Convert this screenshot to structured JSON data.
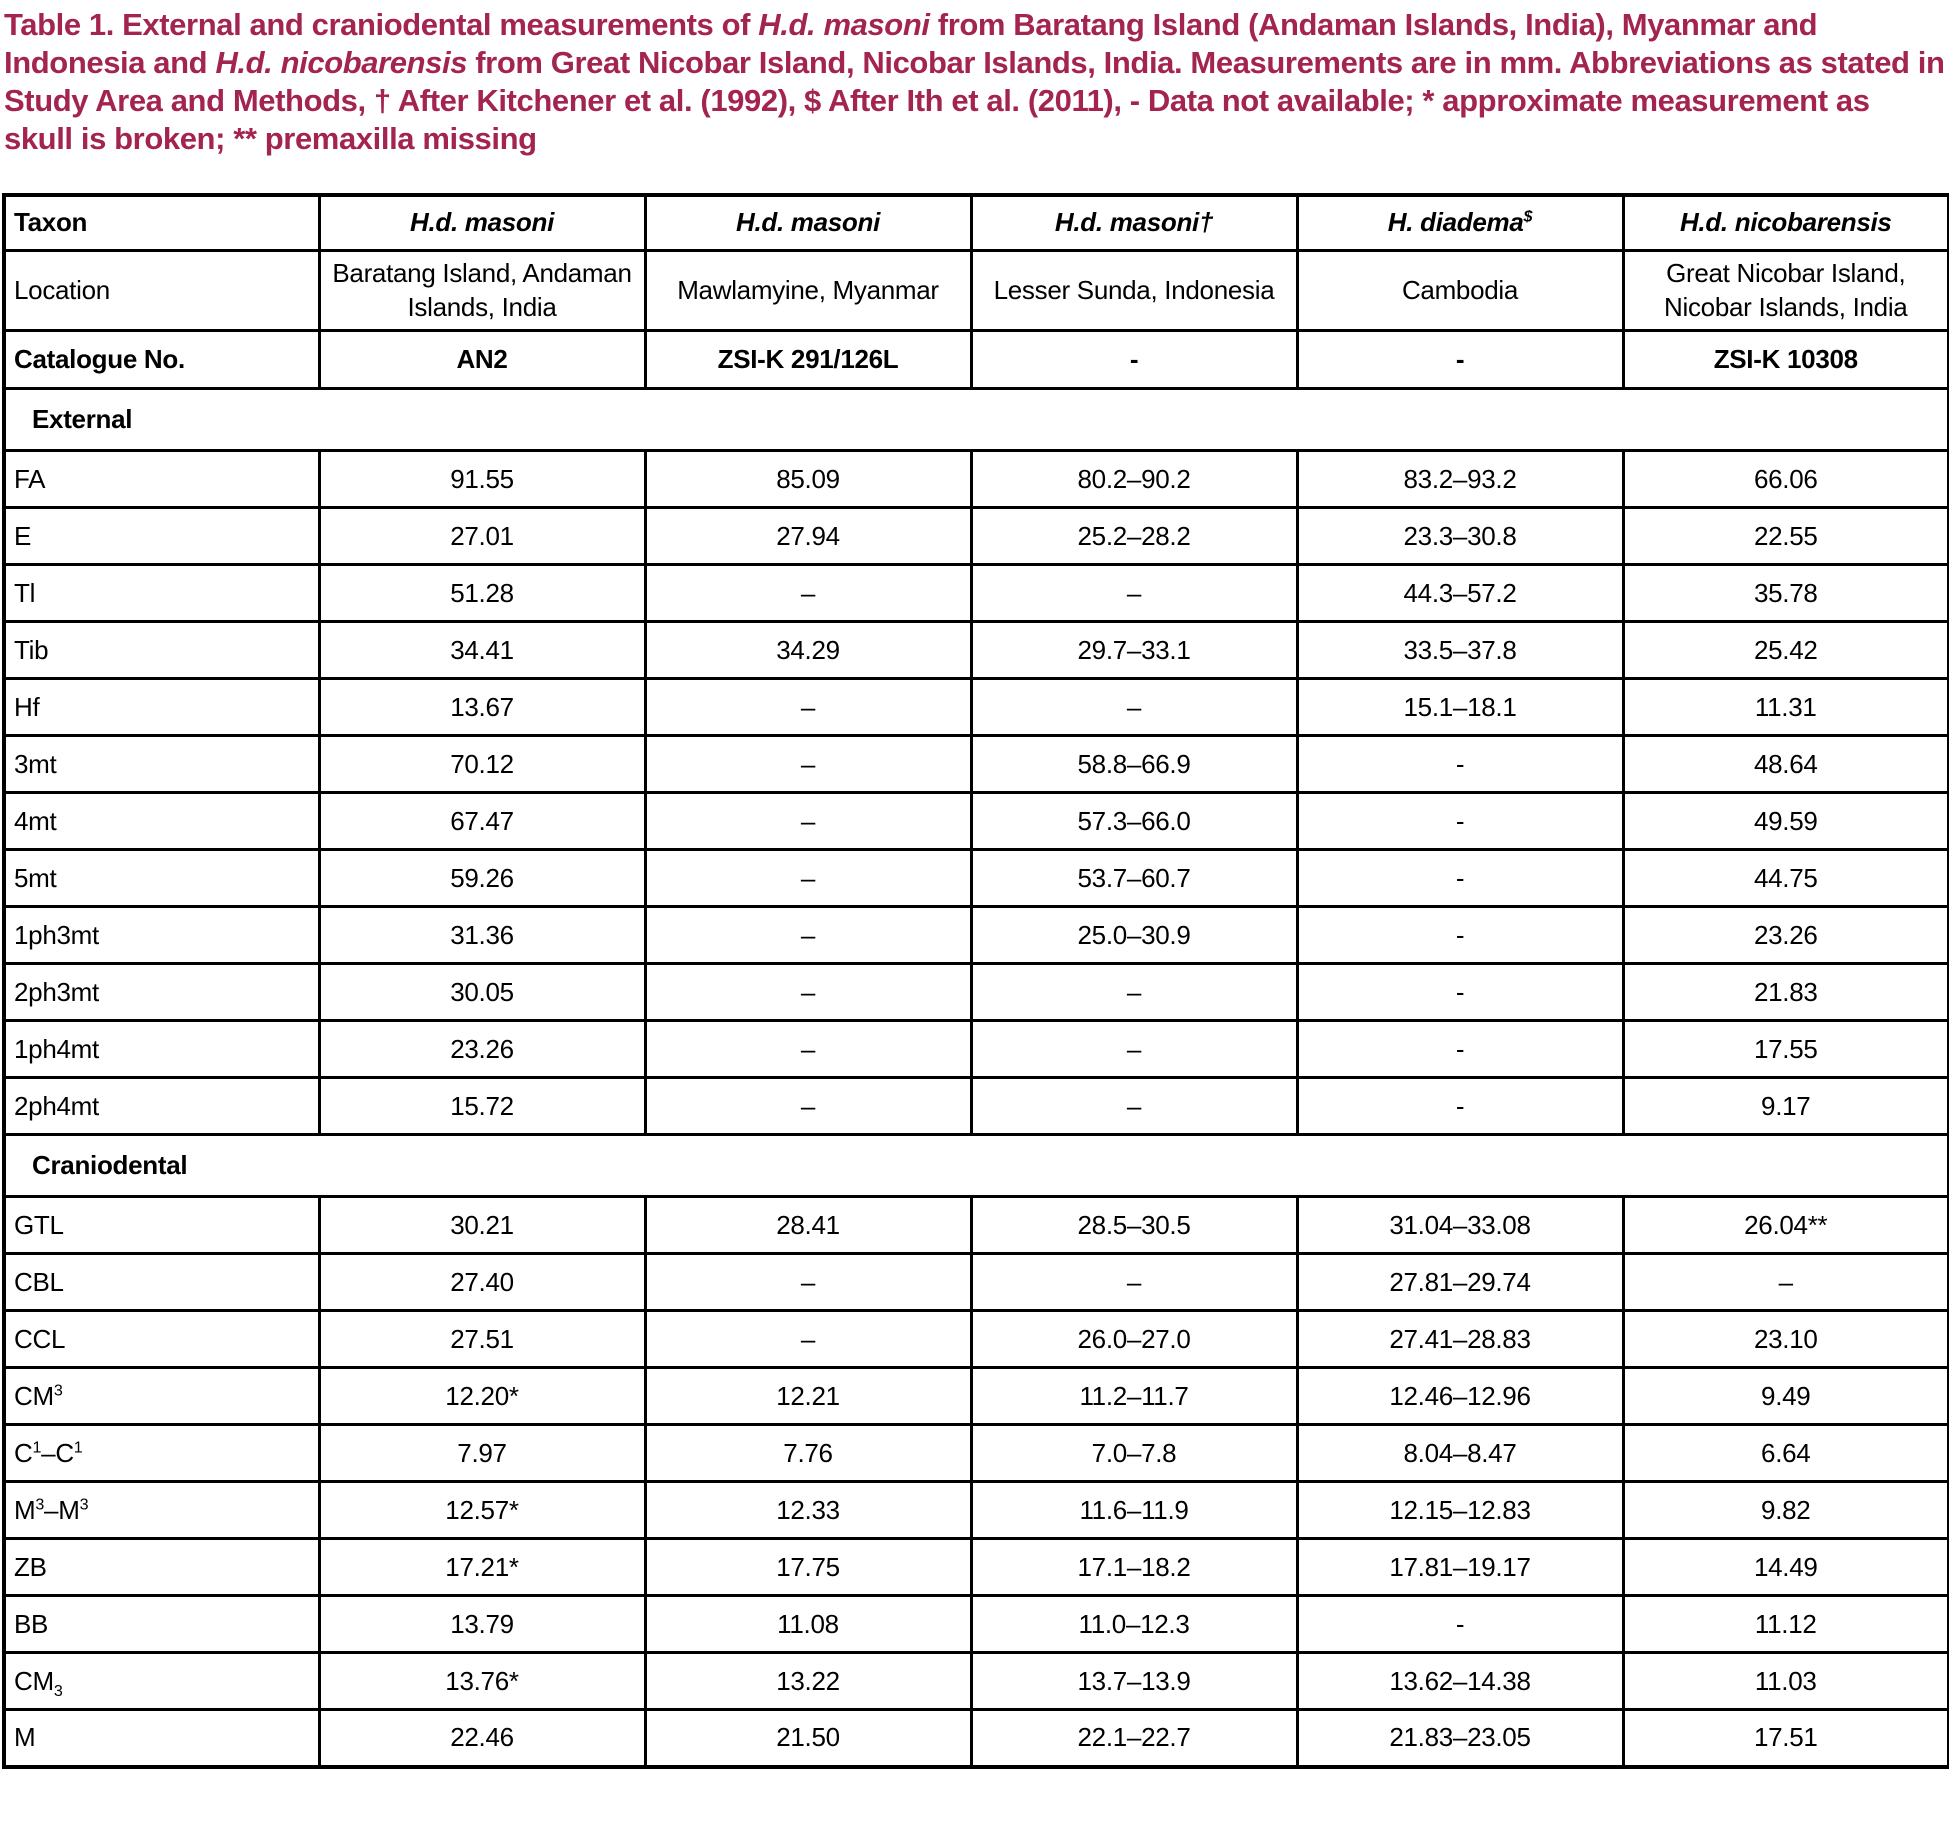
{
  "caption": {
    "color": "#A32450",
    "segments": [
      {
        "text": "Table 1. External and craniodental measurements of ",
        "italic": false
      },
      {
        "text": "H.d. masoni",
        "italic": true
      },
      {
        "text": " from Baratang Island (Andaman Islands, India), Myanmar and Indonesia and ",
        "italic": false
      },
      {
        "text": "H.d. nicobarensis",
        "italic": true
      },
      {
        "text": " from Great Nicobar Island, Nicobar Islands, India. Measurements are in mm. Abbreviations as stated in Study Area and Methods, † After Kitchener et al. (1992), $ After Ith et al. (2011), - Data not available; * approximate measurement as skull is broken; ** premaxilla missing",
        "italic": false
      }
    ]
  },
  "table": {
    "columns": {
      "label_header": "Taxon",
      "taxa": [
        "H.d. masoni",
        "H.d. masoni",
        "H.d. masoni†",
        "H. diadema^{$}",
        "H.d. nicobarensis"
      ]
    },
    "info_rows": [
      {
        "label": "Location",
        "bold": false,
        "values": [
          "Baratang Island, Andaman Islands, India",
          "Mawlamyine, Myanmar",
          "Lesser Sunda, Indonesia",
          "Cambodia",
          "Great Nicobar Island, Nicobar Islands, India"
        ]
      },
      {
        "label": "Catalogue No.",
        "bold": true,
        "values": [
          "AN2",
          "ZSI-K 291/126L",
          "-",
          "-",
          "ZSI-K 10308"
        ]
      }
    ],
    "sections": [
      {
        "title": "External",
        "rows": [
          {
            "label": "FA",
            "values": [
              "91.55",
              "85.09",
              "80.2–90.2",
              "83.2–93.2",
              "66.06"
            ]
          },
          {
            "label": "E",
            "values": [
              "27.01",
              "27.94",
              "25.2–28.2",
              "23.3–30.8",
              "22.55"
            ]
          },
          {
            "label": "Tl",
            "values": [
              "51.28",
              "–",
              "–",
              "44.3–57.2",
              "35.78"
            ]
          },
          {
            "label": "Tib",
            "values": [
              "34.41",
              "34.29",
              "29.7–33.1",
              "33.5–37.8",
              "25.42"
            ]
          },
          {
            "label": "Hf",
            "values": [
              "13.67",
              "–",
              "–",
              "15.1–18.1",
              "11.31"
            ]
          },
          {
            "label": "3mt",
            "values": [
              "70.12",
              "–",
              "58.8–66.9",
              "-",
              "48.64"
            ]
          },
          {
            "label": "4mt",
            "values": [
              "67.47",
              "–",
              "57.3–66.0",
              "-",
              "49.59"
            ]
          },
          {
            "label": "5mt",
            "values": [
              "59.26",
              "–",
              "53.7–60.7",
              "-",
              "44.75"
            ]
          },
          {
            "label": "1ph3mt",
            "values": [
              "31.36",
              "–",
              "25.0–30.9",
              "-",
              "23.26"
            ]
          },
          {
            "label": "2ph3mt",
            "values": [
              "30.05",
              "–",
              "–",
              "-",
              "21.83"
            ]
          },
          {
            "label": "1ph4mt",
            "values": [
              "23.26",
              "–",
              "–",
              "-",
              "17.55"
            ]
          },
          {
            "label": "2ph4mt",
            "values": [
              "15.72",
              "–",
              "–",
              "-",
              "9.17"
            ]
          }
        ]
      },
      {
        "title": "Craniodental",
        "rows": [
          {
            "label": "GTL",
            "values": [
              "30.21",
              "28.41",
              "28.5–30.5",
              "31.04–33.08",
              "26.04**"
            ]
          },
          {
            "label": "CBL",
            "values": [
              "27.40",
              "–",
              "–",
              "27.81–29.74",
              "–"
            ]
          },
          {
            "label": "CCL",
            "values": [
              "27.51",
              "–",
              "26.0–27.0",
              "27.41–28.83",
              "23.10"
            ]
          },
          {
            "label": "CM^{3}",
            "values": [
              "12.20*",
              "12.21",
              "11.2–11.7",
              "12.46–12.96",
              "9.49"
            ]
          },
          {
            "label": "C^{1}–C^{1}",
            "values": [
              "7.97",
              "7.76",
              "7.0–7.8",
              "8.04–8.47",
              "6.64"
            ]
          },
          {
            "label": "M^{3}–M^{3}",
            "values": [
              "12.57*",
              "12.33",
              "11.6–11.9",
              "12.15–12.83",
              "9.82"
            ]
          },
          {
            "label": "ZB",
            "values": [
              "17.21*",
              "17.75",
              "17.1–18.2",
              "17.81–19.17",
              "14.49"
            ]
          },
          {
            "label": "BB",
            "values": [
              "13.79",
              "11.08",
              "11.0–12.3",
              "-",
              "11.12"
            ]
          },
          {
            "label": "CM_{3}",
            "values": [
              "13.76*",
              "13.22",
              "13.7–13.9",
              "13.62–14.38",
              "11.03"
            ]
          },
          {
            "label": "M",
            "values": [
              "22.46",
              "21.50",
              "22.1–22.7",
              "21.83–23.05",
              "17.51"
            ]
          }
        ]
      }
    ]
  }
}
